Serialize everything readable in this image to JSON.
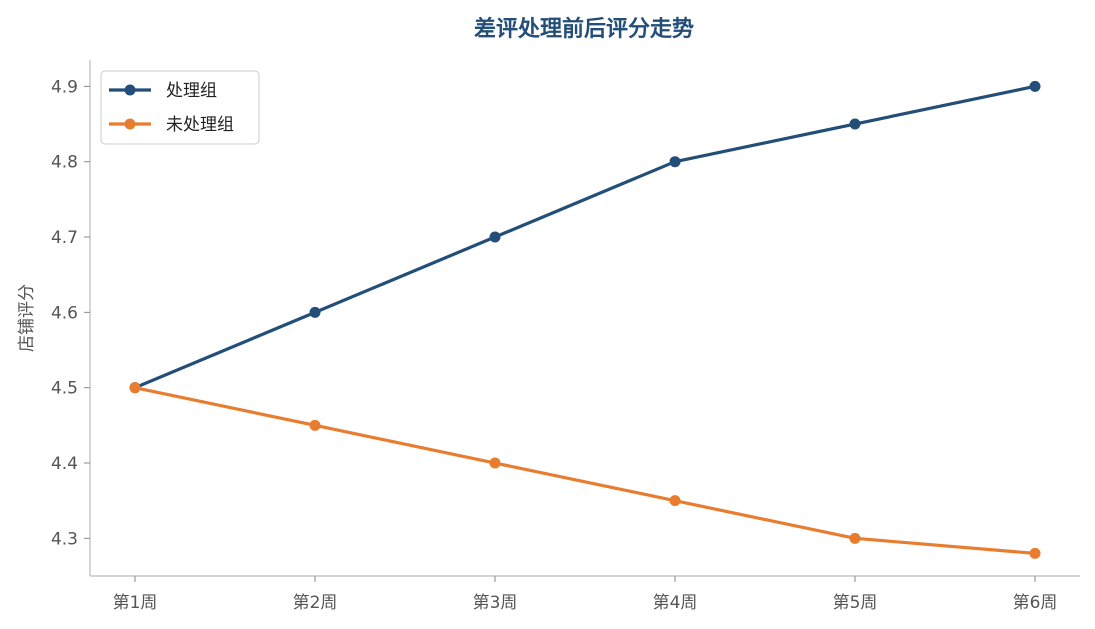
{
  "chart_data": {
    "type": "line",
    "title": "差评处理前后评分走势",
    "xlabel": "",
    "ylabel": "店铺评分",
    "categories": [
      "第1周",
      "第2周",
      "第3周",
      "第4周",
      "第5周",
      "第6周"
    ],
    "series": [
      {
        "name": "处理组",
        "values": [
          4.5,
          4.6,
          4.7,
          4.8,
          4.85,
          4.9
        ],
        "color": "#234e78"
      },
      {
        "name": "未处理组",
        "values": [
          4.5,
          4.45,
          4.4,
          4.35,
          4.3,
          4.28
        ],
        "color": "#e87d2f"
      }
    ],
    "ylim": [
      4.25,
      4.935
    ],
    "yticks": [
      4.3,
      4.4,
      4.5,
      4.6,
      4.7,
      4.8,
      4.9
    ],
    "grid": false,
    "legend_position": "top-left",
    "title_color": "#234e78"
  }
}
